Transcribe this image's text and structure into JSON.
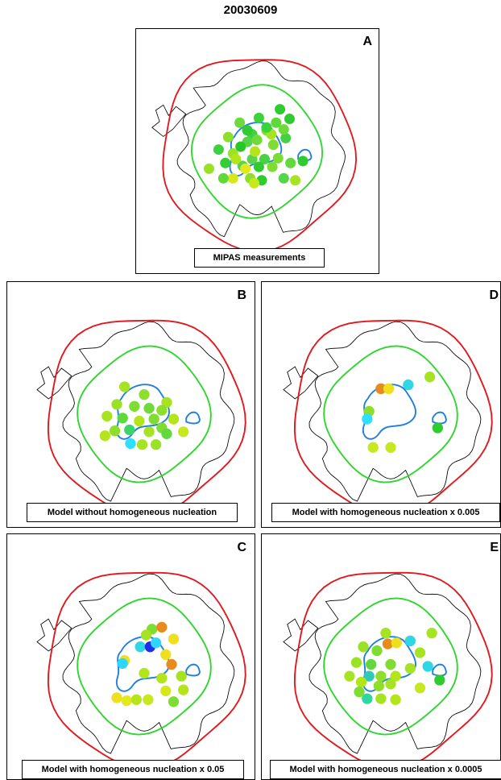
{
  "figure": {
    "title": "20030609"
  },
  "colors": {
    "outer_contour": "#e0191e",
    "inner_contour": "#2ed62e",
    "vortex_contour": "#1f7fe0",
    "coastline": "#000000"
  },
  "panels": [
    {
      "letter": "A",
      "caption": "MIPAS measurements",
      "dots": [
        [
          "#2fcc2f",
          0.24,
          -0.44
        ],
        [
          "#3ad43a",
          0.02,
          -0.35
        ],
        [
          "#2fcc2f",
          0.34,
          -0.34
        ],
        [
          "#5fd93a",
          0.2,
          -0.3
        ],
        [
          "#6ed93a",
          -0.18,
          -0.3
        ],
        [
          "#40d040",
          -0.05,
          -0.18
        ],
        [
          "#7fdd33",
          0.1,
          -0.22
        ],
        [
          "#a6e322",
          0.15,
          -0.18
        ],
        [
          "#44d144",
          0.3,
          -0.14
        ],
        [
          "#8ede2c",
          -0.3,
          -0.15
        ],
        [
          "#55d44a",
          -0.1,
          -0.1
        ],
        [
          "#6fda3a",
          0.0,
          -0.12
        ],
        [
          "#28c728",
          -0.17,
          -0.05
        ],
        [
          "#7edc32",
          0.17,
          -0.07
        ],
        [
          "#3fd03f",
          -0.4,
          -0.02
        ],
        [
          "#9ae225",
          -0.25,
          0.02
        ],
        [
          "#5ad548",
          -0.05,
          0.08
        ],
        [
          "#48d246",
          0.08,
          0.08
        ],
        [
          "#7cdc32",
          0.22,
          0.07
        ],
        [
          "#34cd34",
          -0.33,
          0.12
        ],
        [
          "#55d555",
          -0.15,
          0.15
        ],
        [
          "#e2ea1c",
          -0.12,
          0.18
        ],
        [
          "#2fcc2f",
          0.02,
          0.16
        ],
        [
          "#7edc32",
          0.16,
          0.16
        ],
        [
          "#b4e41a",
          -0.22,
          0.08
        ],
        [
          "#62d83e",
          0.35,
          0.12
        ],
        [
          "#2fcc2f",
          0.48,
          0.1
        ],
        [
          "#9ae225",
          -0.5,
          0.18
        ],
        [
          "#54d54a",
          0.28,
          0.28
        ],
        [
          "#8ede2c",
          -0.07,
          0.28
        ],
        [
          "#2fcc2f",
          0.05,
          0.3
        ],
        [
          "#a6e322",
          0.4,
          0.3
        ],
        [
          "#d5e81c",
          -0.25,
          0.28
        ],
        [
          "#c7e71f",
          -0.03,
          0.33
        ],
        [
          "#5fd93a",
          -0.35,
          0.28
        ],
        [
          "#2fcc2f",
          -0.1,
          -0.22
        ],
        [
          "#3ad43a",
          0.1,
          -0.25
        ],
        [
          "#6ed93a",
          0.28,
          -0.23
        ],
        [
          "#b4e41a",
          -0.02,
          0.0
        ]
      ]
    },
    {
      "letter": "B",
      "caption": "Model without homogeneous nucleation",
      "dots": [
        [
          "#a6e322",
          -0.2,
          -0.28
        ],
        [
          "#8ede2c",
          0.0,
          -0.2
        ],
        [
          "#a6e322",
          0.23,
          -0.12
        ],
        [
          "#9ae225",
          -0.28,
          -0.1
        ],
        [
          "#7edc32",
          -0.1,
          -0.08
        ],
        [
          "#6fda3a",
          0.05,
          -0.06
        ],
        [
          "#a6e322",
          -0.38,
          0.02
        ],
        [
          "#5fd93a",
          -0.22,
          0.04
        ],
        [
          "#7edc32",
          0.1,
          0.05
        ],
        [
          "#b4e41a",
          0.3,
          0.05
        ],
        [
          "#3ad46a",
          -0.15,
          0.16
        ],
        [
          "#a6e322",
          0.05,
          0.18
        ],
        [
          "#7edc32",
          0.18,
          0.14
        ],
        [
          "#b4e41a",
          -0.4,
          0.22
        ],
        [
          "#2edfff",
          -0.14,
          0.3
        ],
        [
          "#c7e71f",
          0.4,
          0.18
        ],
        [
          "#a6e322",
          -0.02,
          0.31
        ],
        [
          "#9ae225",
          0.12,
          0.31
        ],
        [
          "#62d83e",
          0.23,
          0.2
        ],
        [
          "#8ede2c",
          -0.3,
          0.17
        ],
        [
          "#8ede2c",
          0.18,
          -0.04
        ],
        [
          "#b4e41a",
          -0.05,
          0.07
        ]
      ]
    },
    {
      "letter": "C",
      "caption": "Model with homogeneous nucleation x 0.05",
      "dots": [
        [
          "#7edc32",
          0.08,
          -0.38
        ],
        [
          "#e88b1e",
          0.18,
          -0.4
        ],
        [
          "#f0df1c",
          0.3,
          -0.28
        ],
        [
          "#2ed6e6",
          -0.04,
          -0.2
        ],
        [
          "#1f2fe6",
          0.06,
          -0.2
        ],
        [
          "#2fd6ff",
          0.12,
          -0.24
        ],
        [
          "#f0df1c",
          0.22,
          -0.12
        ],
        [
          "#e88b1e",
          0.28,
          -0.02
        ],
        [
          "#f0df1c",
          -0.2,
          -0.06
        ],
        [
          "#2ed6ff",
          -0.22,
          -0.03
        ],
        [
          "#b4e41a",
          0.0,
          0.07
        ],
        [
          "#b4e41a",
          0.18,
          0.12
        ],
        [
          "#a6e322",
          0.38,
          0.1
        ],
        [
          "#d5e81c",
          0.22,
          0.25
        ],
        [
          "#b4e41a",
          0.4,
          0.24
        ],
        [
          "#f0df1c",
          -0.28,
          0.32
        ],
        [
          "#e2ea1c",
          -0.18,
          0.35
        ],
        [
          "#b4e41a",
          -0.08,
          0.34
        ],
        [
          "#c7e71f",
          0.04,
          0.34
        ],
        [
          "#7edc32",
          0.3,
          0.36
        ],
        [
          "#a6e322",
          0.02,
          -0.32
        ]
      ]
    },
    {
      "letter": "D",
      "caption": "Model with homogeneous nucleation x 0.005",
      "dots": [
        [
          "#e88b1e",
          -0.1,
          -0.26
        ],
        [
          "#f0df1c",
          -0.02,
          -0.26
        ],
        [
          "#2ed6e6",
          0.18,
          -0.3
        ],
        [
          "#a6e322",
          0.4,
          -0.38
        ],
        [
          "#8ede2c",
          -0.22,
          -0.03
        ],
        [
          "#2edfff",
          -0.24,
          0.05
        ],
        [
          "#2fcc2f",
          0.48,
          0.14
        ],
        [
          "#c7e71f",
          -0.18,
          0.34
        ],
        [
          "#c7e71f",
          0.0,
          0.34
        ]
      ]
    },
    {
      "letter": "E",
      "caption": "Model with homogeneous nucleation x 0.0005",
      "dots": [
        [
          "#a6e322",
          -0.05,
          -0.34
        ],
        [
          "#e88b1e",
          -0.03,
          -0.23
        ],
        [
          "#f0df1c",
          0.06,
          -0.24
        ],
        [
          "#2ed6e6",
          0.2,
          -0.26
        ],
        [
          "#a6e322",
          0.42,
          -0.34
        ],
        [
          "#9ae225",
          -0.28,
          -0.2
        ],
        [
          "#7edc32",
          -0.14,
          -0.16
        ],
        [
          "#a6e322",
          0.3,
          -0.14
        ],
        [
          "#2ed6e6",
          0.38,
          0.0
        ],
        [
          "#9ae225",
          -0.35,
          -0.04
        ],
        [
          "#62d83e",
          -0.2,
          -0.02
        ],
        [
          "#7edc32",
          0.0,
          -0.02
        ],
        [
          "#a6e322",
          0.2,
          0.02
        ],
        [
          "#2ec9b8",
          -0.22,
          0.1
        ],
        [
          "#8ede2c",
          -0.1,
          0.1
        ],
        [
          "#b4e41a",
          0.05,
          0.1
        ],
        [
          "#a6e322",
          -0.42,
          0.1
        ],
        [
          "#b4e41a",
          -0.3,
          0.16
        ],
        [
          "#8ede2c",
          -0.12,
          0.2
        ],
        [
          "#a6e322",
          0.0,
          0.18
        ],
        [
          "#2fcc2f",
          0.5,
          0.14
        ],
        [
          "#c7e71f",
          0.3,
          0.22
        ],
        [
          "#2ed6a0",
          -0.24,
          0.33
        ],
        [
          "#a6e322",
          -0.1,
          0.33
        ],
        [
          "#b4e41a",
          0.05,
          0.34
        ],
        [
          "#7edc32",
          -0.32,
          0.26
        ]
      ]
    }
  ]
}
